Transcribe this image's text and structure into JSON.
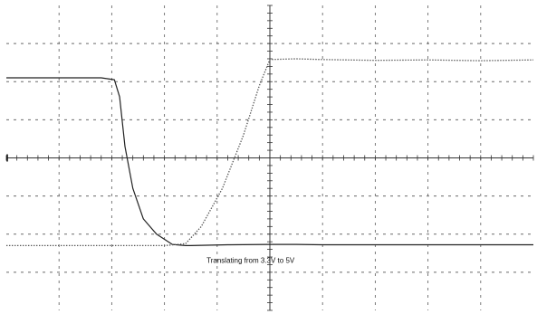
{
  "chart_data": {
    "type": "line",
    "title": "",
    "annotations": [
      "Translating from 3.3V to 5V"
    ],
    "xlabel": "",
    "ylabel": "",
    "grid": true,
    "legend": "none",
    "x_divisions": 10,
    "y_divisions": 8,
    "xlim": [
      -5,
      5
    ],
    "ylim": [
      -4,
      4
    ],
    "series": [
      {
        "color": "#222222",
        "style": "solid",
        "x": [
          -5.0,
          -3.2,
          -2.95,
          -2.85,
          -2.75,
          -2.6,
          -2.4,
          -2.15,
          -1.85,
          -1.6,
          -1.5,
          -0.8,
          0,
          0.5,
          1.0,
          2.0,
          5.0
        ],
        "y": [
          2.1,
          2.1,
          2.05,
          1.6,
          0.3,
          -0.8,
          -1.6,
          -2.0,
          -2.27,
          -2.3,
          -2.3,
          -2.28,
          -2.27,
          -2.27,
          -2.28,
          -2.28,
          -2.28
        ]
      },
      {
        "color": "#555555",
        "style": "dotted",
        "x": [
          -5.0,
          -4.6,
          -4.4,
          -3.0,
          -2.5,
          -2.0,
          -1.6,
          -1.3,
          -0.9,
          -0.5,
          -0.2,
          0,
          0.5,
          1.0,
          2.0,
          3.0,
          4.0,
          5.0
        ],
        "y": [
          -2.3,
          -2.3,
          -2.3,
          -2.3,
          -2.3,
          -2.3,
          -2.25,
          -1.8,
          -0.8,
          0.6,
          1.9,
          2.58,
          2.6,
          2.58,
          2.56,
          2.57,
          2.55,
          2.57
        ]
      }
    ]
  }
}
